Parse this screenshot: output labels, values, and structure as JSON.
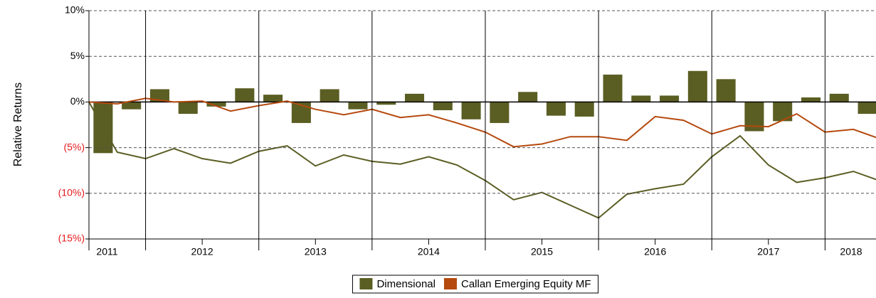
{
  "chart_data": {
    "type": "bar_line",
    "y_axis_label": "Relative Returns",
    "xlim": [
      2011.5,
      2018.45
    ],
    "ylim": [
      -15,
      10
    ],
    "yticks": [
      {
        "value": 10,
        "label": "10%"
      },
      {
        "value": 5,
        "label": "5%"
      },
      {
        "value": 0,
        "label": "0%"
      },
      {
        "value": -5,
        "label": "(5%)"
      },
      {
        "value": -10,
        "label": "(10%)"
      },
      {
        "value": -15,
        "label": "(15%)"
      }
    ],
    "xticks": [
      {
        "value": 2011.66,
        "label": "2011"
      },
      {
        "value": 2012.5,
        "label": "2012"
      },
      {
        "value": 2013.5,
        "label": "2013"
      },
      {
        "value": 2014.5,
        "label": "2014"
      },
      {
        "value": 2015.5,
        "label": "2015"
      },
      {
        "value": 2016.5,
        "label": "2016"
      },
      {
        "value": 2017.5,
        "label": "2017"
      },
      {
        "value": 2018.23,
        "label": "2018"
      }
    ],
    "x_gridlines": [
      2012,
      2013,
      2014,
      2015,
      2016,
      2017,
      2018
    ],
    "x_minor_ticks": [
      2012.5,
      2013.5,
      2014.5,
      2015.5,
      2016.5,
      2017.5
    ],
    "grid": true,
    "legend_position": "bottom",
    "series": [
      {
        "name": "Dimensional",
        "color": "#5b5e23",
        "kind": "bar",
        "x": [
          2011.625,
          2011.875,
          2012.125,
          2012.375,
          2012.625,
          2012.875,
          2013.125,
          2013.375,
          2013.625,
          2013.875,
          2014.125,
          2014.375,
          2014.625,
          2014.875,
          2015.125,
          2015.375,
          2015.625,
          2015.875,
          2016.125,
          2016.375,
          2016.625,
          2016.875,
          2017.125,
          2017.375,
          2017.625,
          2017.875,
          2018.125,
          2018.375
        ],
        "values": [
          -5.6,
          -0.8,
          1.4,
          -1.3,
          -0.5,
          1.5,
          0.8,
          -2.3,
          1.4,
          -0.8,
          -0.3,
          0.9,
          -0.9,
          -1.9,
          -2.3,
          1.1,
          -1.5,
          -1.6,
          3.0,
          0.7,
          0.7,
          3.4,
          2.5,
          -3.2,
          -2.1,
          0.5,
          0.9,
          -1.3
        ]
      },
      {
        "color": "#5b5e23",
        "kind": "line",
        "x": [
          2011.5,
          2011.75,
          2012,
          2012.25,
          2012.5,
          2012.75,
          2013,
          2013.25,
          2013.5,
          2013.75,
          2014,
          2014.25,
          2014.5,
          2014.75,
          2015,
          2015.25,
          2015.5,
          2015.75,
          2016,
          2016.25,
          2016.5,
          2016.75,
          2017,
          2017.25,
          2017.5,
          2017.75,
          2018,
          2018.25,
          2018.5
        ],
        "values": [
          0,
          -5.5,
          -6.2,
          -5.1,
          -6.2,
          -6.7,
          -5.4,
          -4.8,
          -7.0,
          -5.8,
          -6.5,
          -6.8,
          -6.0,
          -6.9,
          -8.6,
          -10.7,
          -9.9,
          -11.3,
          -12.7,
          -10.1,
          -9.5,
          -9.0,
          -6.0,
          -3.7,
          -6.9,
          -8.8,
          -8.3,
          -7.6,
          -8.7
        ]
      },
      {
        "name": "Callan Emerging Equity MF",
        "color": "#b5490e",
        "kind": "line",
        "x": [
          2011.5,
          2011.75,
          2012,
          2012.25,
          2012.5,
          2012.75,
          2013,
          2013.25,
          2013.5,
          2013.75,
          2014,
          2014.25,
          2014.5,
          2014.75,
          2015,
          2015.25,
          2015.5,
          2015.75,
          2016,
          2016.25,
          2016.5,
          2016.75,
          2017,
          2017.25,
          2017.5,
          2017.75,
          2018,
          2018.25,
          2018.5
        ],
        "values": [
          0,
          -0.2,
          0.4,
          0,
          0.1,
          -1.0,
          -0.4,
          0.1,
          -0.8,
          -1.4,
          -0.8,
          -1.7,
          -1.4,
          -2.3,
          -3.3,
          -4.9,
          -4.6,
          -3.8,
          -3.8,
          -4.2,
          -1.6,
          -2.0,
          -3.5,
          -2.6,
          -2.7,
          -1.3,
          -3.3,
          -3.0,
          -4.1
        ]
      }
    ]
  }
}
